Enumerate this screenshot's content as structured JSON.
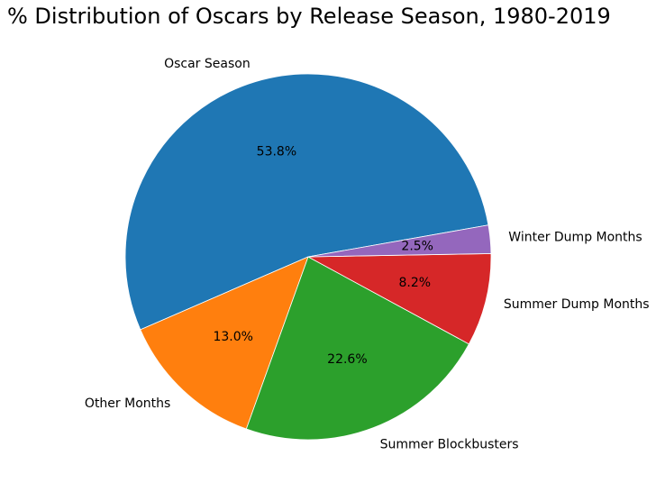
{
  "chart_data": {
    "type": "pie",
    "title": "% Distribution of Oscars by Release Season, 1980-2019",
    "start_angle_deg": 10,
    "direction": "counterclockwise",
    "legend": "none",
    "slices": [
      {
        "label": "Oscar Season",
        "value": 53.8,
        "pct_label": "53.8%",
        "color": "#1f77b4"
      },
      {
        "label": "Other Months",
        "value": 13.0,
        "pct_label": "13.0%",
        "color": "#ff7f0e"
      },
      {
        "label": "Summer Blockbusters",
        "value": 22.6,
        "pct_label": "22.6%",
        "color": "#2ca02c"
      },
      {
        "label": "Summer Dump Months",
        "value": 8.2,
        "pct_label": "8.2%",
        "color": "#d62728"
      },
      {
        "label": "Winter Dump Months",
        "value": 2.5,
        "pct_label": "2.5%",
        "color": "#9467bd"
      }
    ]
  }
}
